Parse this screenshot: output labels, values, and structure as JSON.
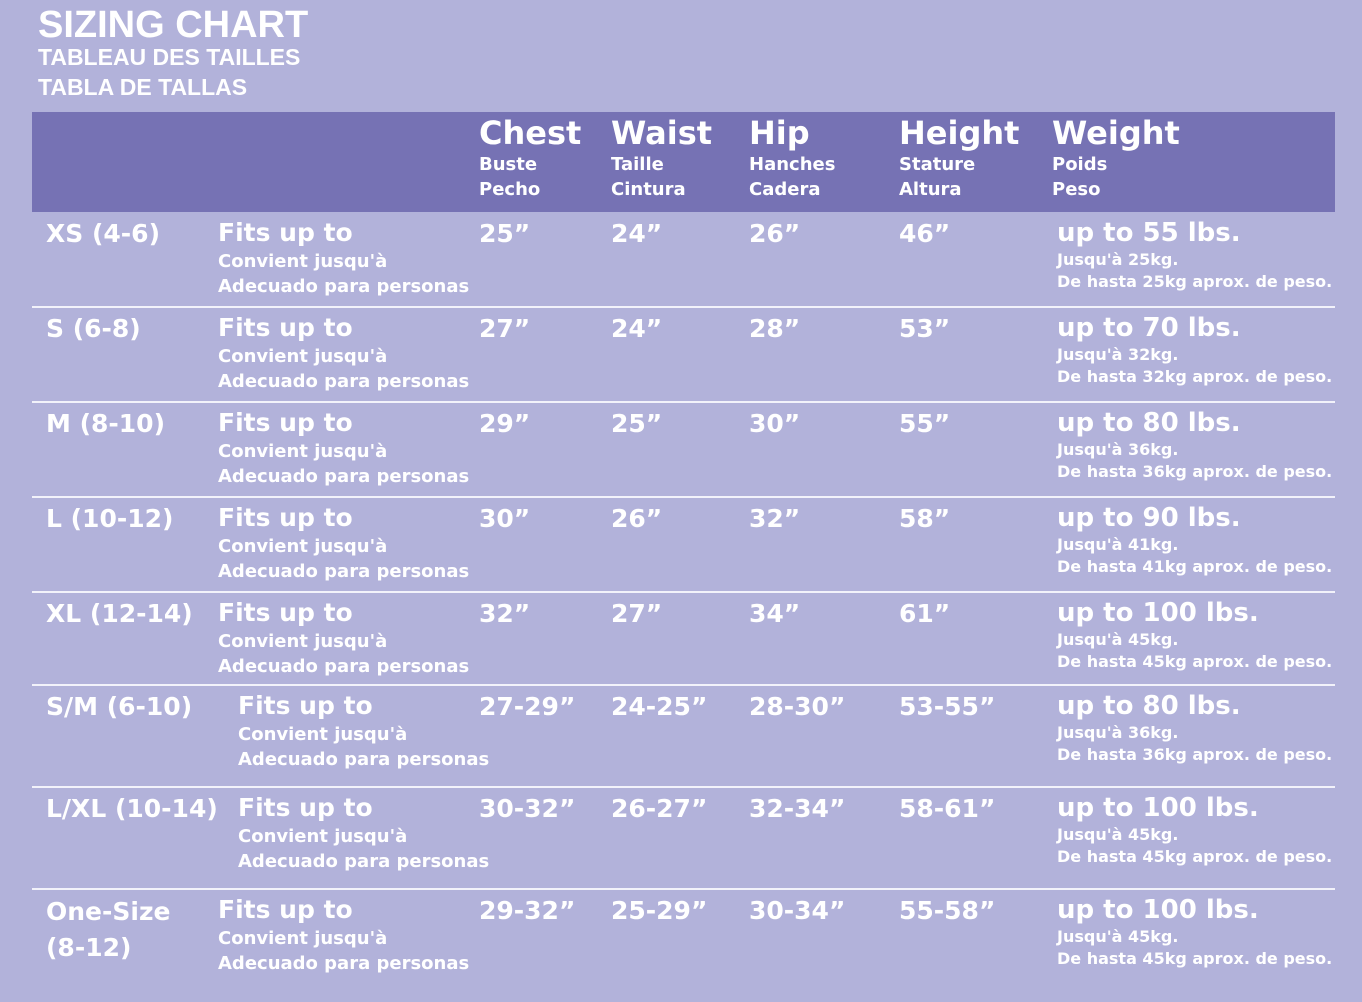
{
  "title": "SIZING CHART",
  "subtitle_fr": "TABLEAU DES TAILLES",
  "subtitle_es": "TABLA DE TALLAS",
  "colors": {
    "background": "#b2b2da",
    "header": "#7672b4",
    "text": "#ffffff"
  },
  "columns": [
    {
      "en": "Chest",
      "fr": "Buste",
      "es": "Pecho"
    },
    {
      "en": "Waist",
      "fr": "Taille",
      "es": "Cintura"
    },
    {
      "en": "Hip",
      "fr": "Hanches",
      "es": "Cadera"
    },
    {
      "en": "Height",
      "fr": "Stature",
      "es": "Altura"
    },
    {
      "en": "Weight",
      "fr": "Poids",
      "es": "Peso"
    }
  ],
  "fits": {
    "en": "Fits up to",
    "fr": "Convient jusqu'à",
    "es": "Adecuado para personas"
  },
  "rows": [
    {
      "size": "XS (4-6)",
      "chest": "25”",
      "waist": "24”",
      "hip": "26”",
      "height": "46”",
      "weight_en": "up to 55 lbs.",
      "weight_fr": "Jusqu'à 25kg.",
      "weight_es": "De hasta 25kg aprox. de peso."
    },
    {
      "size": "S (6-8)",
      "chest": "27”",
      "waist": "24”",
      "hip": "28”",
      "height": "53”",
      "weight_en": "up to 70 lbs.",
      "weight_fr": "Jusqu'à 32kg.",
      "weight_es": "De hasta 32kg aprox. de peso."
    },
    {
      "size": "M (8-10)",
      "chest": "29”",
      "waist": "25”",
      "hip": "30”",
      "height": "55”",
      "weight_en": "up to 80 lbs.",
      "weight_fr": "Jusqu'à 36kg.",
      "weight_es": "De hasta 36kg aprox. de peso."
    },
    {
      "size": "L (10-12)",
      "chest": "30”",
      "waist": "26”",
      "hip": "32”",
      "height": "58”",
      "weight_en": "up to 90 lbs.",
      "weight_fr": "Jusqu'à 41kg.",
      "weight_es": "De hasta 41kg aprox. de peso."
    },
    {
      "size": "XL (12-14)",
      "chest": "32”",
      "waist": "27”",
      "hip": "34”",
      "height": "61”",
      "weight_en": "up to 100 lbs.",
      "weight_fr": "Jusqu'à 45kg.",
      "weight_es": "De hasta 45kg aprox. de peso."
    },
    {
      "size": "S/M (6-10)",
      "chest": "27-29”",
      "waist": "24-25”",
      "hip": "28-30”",
      "height": "53-55”",
      "weight_en": "up to 80 lbs.",
      "weight_fr": "Jusqu'à 36kg.",
      "weight_es": "De hasta 36kg aprox. de peso."
    },
    {
      "size": "L/XL (10-14)",
      "chest": "30-32”",
      "waist": "26-27”",
      "hip": "32-34”",
      "height": "58-61”",
      "weight_en": "up to 100 lbs.",
      "weight_fr": "Jusqu'à 45kg.",
      "weight_es": "De hasta 45kg aprox. de peso."
    },
    {
      "size": "One-Size (8-12)",
      "chest": "29-32”",
      "waist": "25-29”",
      "hip": "30-34”",
      "height": "55-58”",
      "weight_en": "up to 100 lbs.",
      "weight_fr": "Jusqu'à 45kg.",
      "weight_es": "De hasta 45kg aprox. de peso."
    }
  ]
}
